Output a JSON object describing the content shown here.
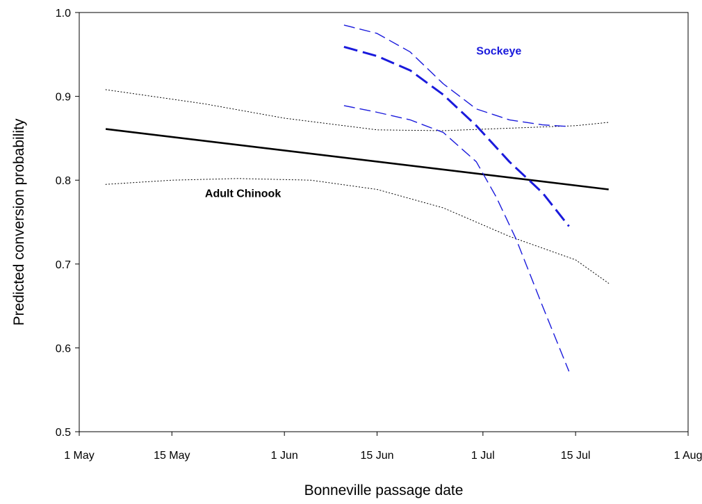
{
  "chart_data": {
    "type": "line",
    "xlabel": "Bonneville passage date",
    "ylabel": "Predicted conversion probability",
    "xlim": [
      "1 May",
      "1 Aug"
    ],
    "ylim": [
      0.5,
      1.0
    ],
    "x_ticks": [
      {
        "label": "1 May",
        "date": "05-01"
      },
      {
        "label": "15 May",
        "date": "05-15"
      },
      {
        "label": "1 Jun",
        "date": "06-01"
      },
      {
        "label": "15 Jun",
        "date": "06-15"
      },
      {
        "label": "1 Jul",
        "date": "07-01"
      },
      {
        "label": "15 Jul",
        "date": "07-15"
      },
      {
        "label": "1 Aug",
        "date": "08-01"
      }
    ],
    "y_ticks": [
      {
        "label": "0.5",
        "value": 0.5
      },
      {
        "label": "0.6",
        "value": 0.6
      },
      {
        "label": "0.7",
        "value": 0.7
      },
      {
        "label": "0.8",
        "value": 0.8
      },
      {
        "label": "0.9",
        "value": 0.9
      },
      {
        "label": "1.0",
        "value": 1.0
      }
    ],
    "grid": false,
    "legend": "none",
    "annotations": [
      {
        "id": "chinook",
        "text": "Adult Chinook",
        "color": "#000000",
        "at": {
          "x": "05-20",
          "y": 0.78
        }
      },
      {
        "id": "sockeye",
        "text": "Sockeye",
        "color": "#1a1adc",
        "at": {
          "x": "06-30",
          "y": 0.95
        }
      }
    ],
    "series": [
      {
        "id": "chinook-fit",
        "group": "Adult Chinook",
        "role": "fit",
        "color": "#000000",
        "style": "solid",
        "width": 2.6,
        "points": [
          [
            "05-05",
            0.861
          ],
          [
            "07-20",
            0.789
          ]
        ]
      },
      {
        "id": "chinook-upper",
        "group": "Adult Chinook",
        "role": "upper-ci",
        "color": "#000000",
        "style": "dotted",
        "width": 1,
        "points": [
          [
            "05-05",
            0.908
          ],
          [
            "05-20",
            0.891
          ],
          [
            "06-01",
            0.874
          ],
          [
            "06-15",
            0.86
          ],
          [
            "06-25",
            0.859
          ],
          [
            "07-05",
            0.862
          ],
          [
            "07-15",
            0.865
          ],
          [
            "07-20",
            0.869
          ]
        ]
      },
      {
        "id": "chinook-lower",
        "group": "Adult Chinook",
        "role": "lower-ci",
        "color": "#000000",
        "style": "dotted",
        "width": 1,
        "points": [
          [
            "05-05",
            0.795
          ],
          [
            "05-15",
            0.8
          ],
          [
            "05-25",
            0.802
          ],
          [
            "06-05",
            0.8
          ],
          [
            "06-15",
            0.789
          ],
          [
            "06-25",
            0.767
          ],
          [
            "07-05",
            0.733
          ],
          [
            "07-15",
            0.705
          ],
          [
            "07-20",
            0.677
          ]
        ]
      },
      {
        "id": "sockeye-fit",
        "group": "Sockeye",
        "role": "fit",
        "color": "#1a1adc",
        "style": "dashed-heavy",
        "width": 3,
        "points": [
          [
            "06-10",
            0.959
          ],
          [
            "06-15",
            0.948
          ],
          [
            "06-20",
            0.931
          ],
          [
            "06-25",
            0.902
          ],
          [
            "06-30",
            0.865
          ],
          [
            "07-05",
            0.822
          ],
          [
            "07-10",
            0.785
          ],
          [
            "07-14",
            0.745
          ]
        ]
      },
      {
        "id": "sockeye-upper",
        "group": "Sockeye",
        "role": "upper-ci",
        "color": "#1a1adc",
        "style": "dashed",
        "width": 1.4,
        "points": [
          [
            "06-10",
            0.985
          ],
          [
            "06-15",
            0.975
          ],
          [
            "06-20",
            0.953
          ],
          [
            "06-25",
            0.915
          ],
          [
            "06-30",
            0.885
          ],
          [
            "07-05",
            0.872
          ],
          [
            "07-10",
            0.866
          ],
          [
            "07-14",
            0.864
          ]
        ]
      },
      {
        "id": "sockeye-lower",
        "group": "Sockeye",
        "role": "lower-ci",
        "color": "#1a1adc",
        "style": "dashed",
        "width": 1.4,
        "points": [
          [
            "06-10",
            0.889
          ],
          [
            "06-15",
            0.881
          ],
          [
            "06-20",
            0.872
          ],
          [
            "06-25",
            0.857
          ],
          [
            "06-30",
            0.822
          ],
          [
            "07-03",
            0.78
          ],
          [
            "07-06",
            0.73
          ],
          [
            "07-10",
            0.65
          ],
          [
            "07-14",
            0.572
          ]
        ]
      }
    ]
  }
}
